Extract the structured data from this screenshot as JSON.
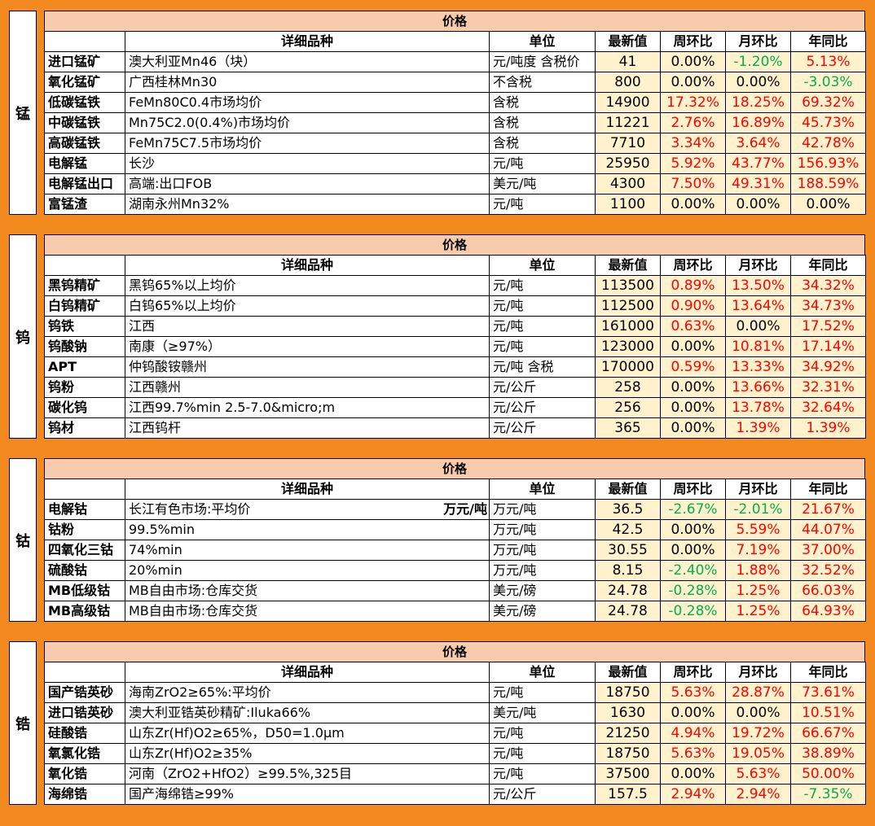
{
  "sections": [
    {
      "label": "锰",
      "title": "价格",
      "headers": [
        "详细品种",
        "单位",
        "最新值",
        "周环比",
        "月环比",
        "年同比"
      ],
      "rows": [
        [
          "进口锰矿",
          "澳大利亚Mn46（块）",
          "元/吨度 含税价",
          "41",
          "0.00%",
          "-1.20%",
          "5.13%"
        ],
        [
          "氧化锰矿",
          "广西桂林Mn30",
          "不含税",
          "800",
          "0.00%",
          "0.00%",
          "-3.03%"
        ],
        [
          "低碳锰铁",
          "FeMn80C0.4市场均价",
          "含税",
          "14900",
          "17.32%",
          "18.25%",
          "69.32%"
        ],
        [
          "中碳锰铁",
          "Mn75C2.0(0.4%)市场均价",
          "含税",
          "11221",
          "2.76%",
          "16.89%",
          "45.73%"
        ],
        [
          "高碳锰铁",
          "FeMn75C7.5市场均价",
          "含税",
          "7710",
          "3.34%",
          "3.64%",
          "42.78%"
        ],
        [
          "电解锰",
          "长沙",
          "元/吨",
          "25950",
          "5.92%",
          "43.77%",
          "156.93%"
        ],
        [
          "电解锰出口",
          "高端:出口FOB",
          "美元/吨",
          "4300",
          "7.50%",
          "49.31%",
          "188.59%"
        ],
        [
          "富锰渣",
          "湖南永州Mn32%",
          "元/吨",
          "1100",
          "0.00%",
          "0.00%",
          "0.00%"
        ]
      ]
    },
    {
      "label": "钨",
      "title": "价格",
      "headers": [
        "详细品种",
        "单位",
        "最新值",
        "周环比",
        "月环比",
        "年同比"
      ],
      "rows": [
        [
          "黑钨精矿",
          "黑钨65%以上均价",
          "元/吨",
          "113500",
          "0.89%",
          "13.50%",
          "34.32%"
        ],
        [
          "白钨精矿",
          "白钨65%以上均价",
          "元/吨",
          "112500",
          "0.90%",
          "13.64%",
          "34.73%"
        ],
        [
          "钨铁",
          "江西",
          "元/吨",
          "161000",
          "0.63%",
          "0.00%",
          "17.52%"
        ],
        [
          "钨酸钠",
          "南康（≥97%）",
          "元/吨",
          "123000",
          "0.00%",
          "10.81%",
          "17.14%"
        ],
        [
          "APT",
          "仲钨酸铵赣州",
          "元/吨 含税",
          "170000",
          "0.59%",
          "13.33%",
          "34.92%"
        ],
        [
          "钨粉",
          "江西赣州",
          "元/公斤",
          "258",
          "0.00%",
          "13.66%",
          "32.31%"
        ],
        [
          "碳化钨",
          "江西99.7%min 2.5-7.0&micro;m",
          "元/公斤",
          "256",
          "0.00%",
          "13.78%",
          "32.64%"
        ],
        [
          "钨材",
          "江西钨杆",
          "元/公斤",
          "365",
          "0.00%",
          "1.39%",
          "1.39%"
        ]
      ]
    },
    {
      "label": "钴",
      "title": "价格",
      "headers": [
        "详细品种",
        "单位",
        "最新值",
        "周环比",
        "月环比",
        "年同比"
      ],
      "rows": [
        [
          "电解钴",
          "长江有色市场:平均价",
          "万元/吨",
          "36.5",
          "-2.67%",
          "-2.01%",
          "21.67%",
          "万元/吨"
        ],
        [
          "钴粉",
          "99.5%min",
          "万元/吨",
          "42.5",
          "0.00%",
          "5.59%",
          "44.07%"
        ],
        [
          "四氧化三钴",
          "74%min",
          "万元/吨",
          "30.55",
          "0.00%",
          "7.19%",
          "37.00%"
        ],
        [
          "硫酸钴",
          "20%min",
          "万元/吨",
          "8.15",
          "-2.40%",
          "1.88%",
          "32.52%"
        ],
        [
          "MB低级钴",
          "MB自由市场:仓库交货",
          "美元/磅",
          "24.78",
          "-0.28%",
          "1.25%",
          "66.03%"
        ],
        [
          "MB高级钴",
          "MB自由市场:仓库交货",
          "美元/磅",
          "24.78",
          "-0.28%",
          "1.25%",
          "64.93%"
        ]
      ]
    },
    {
      "label": "锆",
      "title": "价格",
      "headers": [
        "详细品种",
        "单位",
        "最新值",
        "周环比",
        "月环比",
        "年同比"
      ],
      "rows": [
        [
          "国产锆英砂",
          "海南ZrO2≥65%:平均价",
          "元/吨",
          "18750",
          "5.63%",
          "28.87%",
          "73.61%"
        ],
        [
          "进口锆英砂",
          "澳大利亚锆英砂精矿:Iluka66%",
          "美元/吨",
          "1630",
          "0.00%",
          "0.00%",
          "10.51%"
        ],
        [
          "硅酸锆",
          "山东Zr(Hf)O2≥65%，D50=1.0μm",
          "元/吨",
          "21250",
          "4.94%",
          "19.72%",
          "66.67%"
        ],
        [
          "氧氯化锆",
          "山东Zr(Hf)O2≥35%",
          "元/吨",
          "18750",
          "5.63%",
          "19.05%",
          "38.89%"
        ],
        [
          "氧化锆",
          "河南（ZrO2+HfO2）≥99.5%,325目",
          "元/吨",
          "37500",
          "0.00%",
          "5.63%",
          "50.00%"
        ],
        [
          "海绵锆",
          "国产海绵锆≥99%",
          "元/公斤",
          "157.5",
          "2.94%",
          "2.94%",
          "-7.35%"
        ]
      ]
    }
  ]
}
